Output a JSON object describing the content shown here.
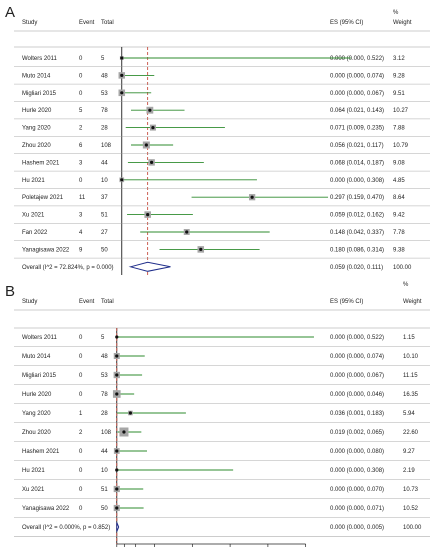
{
  "panels": [
    {
      "letter": "A",
      "headers": {
        "study": "Study",
        "event": "Event",
        "total": "Total",
        "es": "ES (95% CI)",
        "pct": "%",
        "weight": "Weight"
      },
      "chart_data": {
        "type": "forest",
        "xlim": [
          -0.02,
          0.52
        ],
        "xticks": [
          "0",
          "0.1",
          "0.2",
          "0.3",
          "0.4"
        ],
        "tick_values": [
          0,
          0.1,
          0.2,
          0.3,
          0.4
        ],
        "reference_line": 0,
        "pooled_line": 0.059,
        "rows": [
          {
            "study": "Wolters 2011",
            "event": "0",
            "total": "5",
            "es": 0.0,
            "lo": 0.0,
            "hi": 0.522,
            "es_text": "0.000 (0.000, 0.522)",
            "weight": "3.12"
          },
          {
            "study": "Muto 2014",
            "event": "0",
            "total": "48",
            "es": 0.0,
            "lo": 0.0,
            "hi": 0.074,
            "es_text": "0.000 (0.000, 0.074)",
            "weight": "9.28"
          },
          {
            "study": "Migliari 2015",
            "event": "0",
            "total": "53",
            "es": 0.0,
            "lo": 0.0,
            "hi": 0.067,
            "es_text": "0.000 (0.000, 0.067)",
            "weight": "9.51"
          },
          {
            "study": "Hurle 2020",
            "event": "5",
            "total": "78",
            "es": 0.064,
            "lo": 0.021,
            "hi": 0.143,
            "es_text": "0.064 (0.021, 0.143)",
            "weight": "10.27"
          },
          {
            "study": "Yang 2020",
            "event": "2",
            "total": "28",
            "es": 0.071,
            "lo": 0.009,
            "hi": 0.235,
            "es_text": "0.071 (0.009, 0.235)",
            "weight": "7.88"
          },
          {
            "study": "Zhou 2020",
            "event": "6",
            "total": "108",
            "es": 0.056,
            "lo": 0.021,
            "hi": 0.117,
            "es_text": "0.056 (0.021, 0.117)",
            "weight": "10.79"
          },
          {
            "study": "Hashem 2021",
            "event": "3",
            "total": "44",
            "es": 0.068,
            "lo": 0.014,
            "hi": 0.187,
            "es_text": "0.068 (0.014, 0.187)",
            "weight": "9.08"
          },
          {
            "study": "Hu 2021",
            "event": "0",
            "total": "10",
            "es": 0.0,
            "lo": 0.0,
            "hi": 0.308,
            "es_text": "0.000 (0.000, 0.308)",
            "weight": "4.85"
          },
          {
            "study": "Poletajew 2021",
            "event": "11",
            "total": "37",
            "es": 0.297,
            "lo": 0.159,
            "hi": 0.47,
            "es_text": "0.297 (0.159, 0.470)",
            "weight": "8.64"
          },
          {
            "study": "Xu 2021",
            "event": "3",
            "total": "51",
            "es": 0.059,
            "lo": 0.012,
            "hi": 0.162,
            "es_text": "0.059 (0.012, 0.162)",
            "weight": "9.42"
          },
          {
            "study": "Fan 2022",
            "event": "4",
            "total": "27",
            "es": 0.148,
            "lo": 0.042,
            "hi": 0.337,
            "es_text": "0.148 (0.042, 0.337)",
            "weight": "7.78"
          },
          {
            "study": "Yanagisawa 2022",
            "event": "9",
            "total": "50",
            "es": 0.18,
            "lo": 0.086,
            "hi": 0.314,
            "es_text": "0.180 (0.086, 0.314)",
            "weight": "9.38"
          }
        ],
        "overall": {
          "label": "Overall  (I^2 = 72.824%, p = 0.000)",
          "es": 0.059,
          "lo": 0.02,
          "hi": 0.111,
          "es_text": "0.059 (0.020, 0.111)",
          "weight": "100.00"
        }
      }
    },
    {
      "letter": "B",
      "headers": {
        "study": "Study",
        "event": "Event",
        "total": "Total",
        "es": "ES (95% CI)",
        "pct": "%",
        "weight": "Weight"
      },
      "chart_data": {
        "type": "forest",
        "xlim": [
          -0.01,
          0.62
        ],
        "xticks": [
          "0",
          "0.02",
          "0.05",
          "0.1",
          "0.2",
          "0.3",
          "0.4",
          "0.5"
        ],
        "tick_values": [
          0,
          0.02,
          0.05,
          0.1,
          0.2,
          0.3,
          0.4,
          0.5
        ],
        "reference_line": 0,
        "pooled_line": 0.0,
        "rows": [
          {
            "study": "Wolters 2011",
            "event": "0",
            "total": "5",
            "es": 0.0,
            "lo": 0.0,
            "hi": 0.522,
            "es_text": "0.000 (0.000, 0.522)",
            "weight": "1.15"
          },
          {
            "study": "Muto 2014",
            "event": "0",
            "total": "48",
            "es": 0.0,
            "lo": 0.0,
            "hi": 0.074,
            "es_text": "0.000 (0.000, 0.074)",
            "weight": "10.10"
          },
          {
            "study": "Migliari 2015",
            "event": "0",
            "total": "53",
            "es": 0.0,
            "lo": 0.0,
            "hi": 0.067,
            "es_text": "0.000 (0.000, 0.067)",
            "weight": "11.15"
          },
          {
            "study": "Hurle 2020",
            "event": "0",
            "total": "78",
            "es": 0.0,
            "lo": 0.0,
            "hi": 0.046,
            "es_text": "0.000 (0.000, 0.046)",
            "weight": "16.35"
          },
          {
            "study": "Yang 2020",
            "event": "1",
            "total": "28",
            "es": 0.036,
            "lo": 0.001,
            "hi": 0.183,
            "es_text": "0.036 (0.001, 0.183)",
            "weight": "5.94"
          },
          {
            "study": "Zhou 2020",
            "event": "2",
            "total": "108",
            "es": 0.019,
            "lo": 0.002,
            "hi": 0.065,
            "es_text": "0.019 (0.002, 0.065)",
            "weight": "22.60"
          },
          {
            "study": "Hashem 2021",
            "event": "0",
            "total": "44",
            "es": 0.0,
            "lo": 0.0,
            "hi": 0.08,
            "es_text": "0.000 (0.000, 0.080)",
            "weight": "9.27"
          },
          {
            "study": "Hu 2021",
            "event": "0",
            "total": "10",
            "es": 0.0,
            "lo": 0.0,
            "hi": 0.308,
            "es_text": "0.000 (0.000, 0.308)",
            "weight": "2.19"
          },
          {
            "study": "Xu 2021",
            "event": "0",
            "total": "51",
            "es": 0.0,
            "lo": 0.0,
            "hi": 0.07,
            "es_text": "0.000 (0.000, 0.070)",
            "weight": "10.73"
          },
          {
            "study": "Yanagisawa 2022",
            "event": "0",
            "total": "50",
            "es": 0.0,
            "lo": 0.0,
            "hi": 0.071,
            "es_text": "0.000 (0.000, 0.071)",
            "weight": "10.52"
          }
        ],
        "overall": {
          "label": "Overall  (I^2 = 0.000%, p = 0.852)",
          "es": 0.0,
          "lo": 0.0,
          "hi": 0.005,
          "es_text": "0.000 (0.000, 0.005)",
          "weight": "100.00"
        }
      }
    }
  ],
  "colors": {
    "ci_line": "#2e8b2e",
    "ref_line": "#000000",
    "pooled_line": "#c0392b",
    "diamond": "#1f2d8a",
    "box": "#a6a6a6",
    "table_line": "#999999"
  }
}
